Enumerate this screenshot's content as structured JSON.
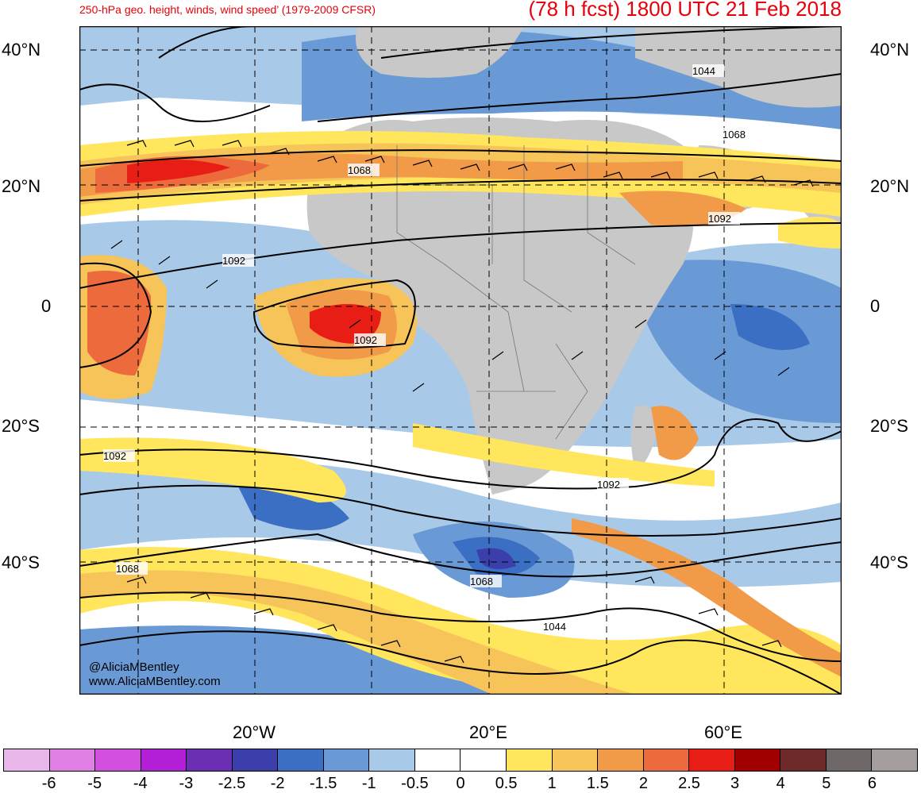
{
  "header": {
    "subtitle": "250-hPa geo. height, winds, wind speed’ (1979-2009 CFSR)",
    "title": "(78 h fcst) 1800 UTC 21 Feb 2018"
  },
  "map": {
    "region": "Africa and surrounding oceans",
    "lat_labels_left": [
      "40°N",
      "20°N",
      "0",
      "20°S",
      "40°S"
    ],
    "lat_labels_right": [
      "40°N",
      "20°N",
      "0",
      "20°S",
      "40°S"
    ],
    "lon_labels": [
      "20°W",
      "20°E",
      "60°E"
    ],
    "contour_labels": [
      "1044",
      "1068",
      "1068",
      "1092",
      "1092",
      "1092",
      "1092",
      "1092",
      "1068",
      "1068",
      "1044"
    ],
    "colors": {
      "land": "#c8c8c8",
      "title": "#e8000b"
    }
  },
  "credits": {
    "handle": "@AliciaMBentley",
    "site": "www.AliciaMBentley.com"
  },
  "colorbar": {
    "colors": [
      "#e9b7ea",
      "#e07fe6",
      "#d24fe0",
      "#b21fd6",
      "#6a2fb3",
      "#3b3eab",
      "#3b6fc3",
      "#6a9ad5",
      "#a8c9e8",
      "#ffffff",
      "#ffffff",
      "#ffe65c",
      "#f7c45a",
      "#f19a48",
      "#ec6a3c",
      "#e81e16",
      "#a00000",
      "#6e2a2a",
      "#6e6868",
      "#a49e9e"
    ],
    "tick_labels": [
      "-6",
      "-5",
      "-4",
      "-3",
      "-2.5",
      "-2",
      "-1.5",
      "-1",
      "-0.5",
      "0",
      "0.5",
      "1",
      "1.5",
      "2",
      "2.5",
      "3",
      "4",
      "5",
      "6"
    ]
  }
}
